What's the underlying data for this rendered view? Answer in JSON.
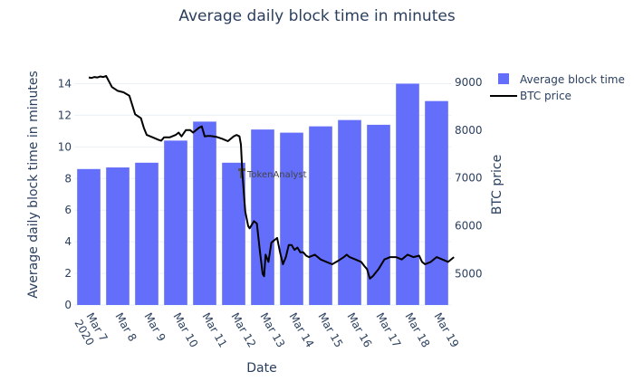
{
  "chart_data": {
    "type": "bar+line",
    "title": "Average daily block time in minutes",
    "xlabel": "Date",
    "ylabel": "Average daily block time in minutes",
    "y2label": "BTC price",
    "categories": [
      "Mar 7",
      "Mar 8",
      "Mar 9",
      "Mar 10",
      "Mar 11",
      "Mar 12",
      "Mar 13",
      "Mar 14",
      "Mar 15",
      "Mar 16",
      "Mar 17",
      "Mar 18",
      "Mar 19"
    ],
    "first_tick_year": "2020",
    "ylim": [
      0,
      15
    ],
    "yticks": [
      0,
      2,
      4,
      6,
      8,
      10,
      12,
      14
    ],
    "y2lim": [
      4350,
      9300
    ],
    "y2ticks": [
      5000,
      6000,
      7000,
      8000,
      9000
    ],
    "series": [
      {
        "name": "Average block time",
        "type": "bar",
        "color": "#636efa",
        "values": [
          8.6,
          8.7,
          9.0,
          10.4,
          11.6,
          9.0,
          11.1,
          10.9,
          11.3,
          11.7,
          11.4,
          14.0,
          12.9
        ]
      },
      {
        "name": "BTC price",
        "type": "line",
        "color": "#000000",
        "x": [
          0.0,
          0.1,
          0.2,
          0.3,
          0.4,
          0.5,
          0.6,
          0.8,
          1.0,
          1.2,
          1.4,
          1.6,
          1.8,
          1.9,
          2.0,
          2.2,
          2.4,
          2.5,
          2.6,
          2.8,
          3.0,
          3.1,
          3.2,
          3.35,
          3.5,
          3.6,
          3.8,
          3.9,
          4.0,
          4.1,
          4.2,
          4.4,
          4.6,
          4.8,
          5.0,
          5.1,
          5.2,
          5.25,
          5.3,
          5.4,
          5.5,
          5.55,
          5.6,
          5.7,
          5.8,
          5.9,
          6.0,
          6.05,
          6.1,
          6.2,
          6.3,
          6.4,
          6.5,
          6.6,
          6.7,
          6.8,
          6.9,
          7.0,
          7.1,
          7.2,
          7.3,
          7.4,
          7.5,
          7.6,
          7.8,
          8.0,
          8.2,
          8.4,
          8.6,
          8.8,
          8.9,
          9.0,
          9.2,
          9.4,
          9.5,
          9.6,
          9.7,
          9.8,
          10.0,
          10.2,
          10.4,
          10.6,
          10.8,
          11.0,
          11.2,
          11.4,
          11.5,
          11.6,
          11.8,
          12.0,
          12.2,
          12.4,
          12.6
        ],
        "values": [
          9100,
          9090,
          9110,
          9100,
          9120,
          9110,
          9130,
          8900,
          8820,
          8790,
          8720,
          8330,
          8250,
          8050,
          7900,
          7850,
          7800,
          7780,
          7850,
          7850,
          7900,
          7950,
          7870,
          8000,
          8000,
          7950,
          8050,
          8080,
          7870,
          7880,
          7880,
          7860,
          7820,
          7770,
          7870,
          7900,
          7870,
          7700,
          7100,
          6300,
          6000,
          5950,
          6000,
          6100,
          6050,
          5500,
          5000,
          4950,
          5400,
          5250,
          5650,
          5700,
          5750,
          5450,
          5200,
          5350,
          5600,
          5600,
          5500,
          5550,
          5450,
          5450,
          5380,
          5350,
          5400,
          5300,
          5250,
          5200,
          5270,
          5350,
          5400,
          5350,
          5300,
          5250,
          5170,
          5100,
          4900,
          4950,
          5100,
          5300,
          5350,
          5350,
          5300,
          5400,
          5350,
          5380,
          5250,
          5200,
          5250,
          5350,
          5300,
          5250,
          5350
        ]
      }
    ],
    "legend": "top-right",
    "annotation": "TokenAnalyst"
  }
}
